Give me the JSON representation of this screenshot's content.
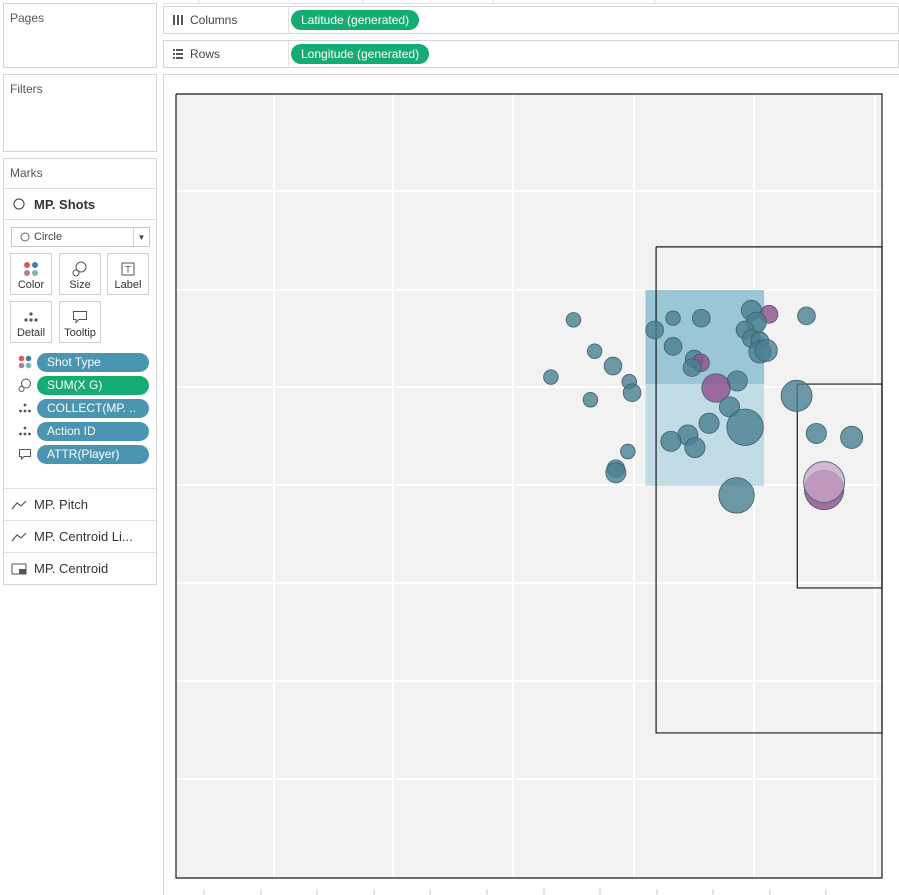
{
  "pages": {
    "title": "Pages"
  },
  "filters": {
    "title": "Filters"
  },
  "marks": {
    "title": "Marks",
    "active_layer": "MP. Shots",
    "mark_type": "Circle",
    "buttons": {
      "color": "Color",
      "size": "Size",
      "label": "Label",
      "detail": "Detail",
      "tooltip": "Tooltip"
    },
    "pills": [
      {
        "icon": "color-icon",
        "text": "Shot Type",
        "color": "#4a95b0"
      },
      {
        "icon": "size-icon",
        "text": "SUM(X G)",
        "color": "#15ac74"
      },
      {
        "icon": "detail-icon",
        "text": "COLLECT(MP. ..",
        "color": "#4a95b0"
      },
      {
        "icon": "detail-icon",
        "text": "Action ID",
        "color": "#4a95b0"
      },
      {
        "icon": "tooltip-icon",
        "text": "ATTR(Player)",
        "color": "#4a95b0"
      }
    ],
    "layers": [
      {
        "icon": "line-icon",
        "text": "MP. Pitch"
      },
      {
        "icon": "line-icon",
        "text": "MP. Centroid Li..."
      },
      {
        "icon": "polygon-icon",
        "text": "MP. Centroid"
      }
    ]
  },
  "shelves": {
    "columns": {
      "label": "Columns",
      "pill": "Latitude (generated)"
    },
    "rows": {
      "label": "Rows",
      "pill": "Longitude (generated)"
    }
  },
  "colors": {
    "shot_teal": "#4a7f91",
    "shot_purple": "#8e4d8c",
    "shot_light_purple": "#c9a6c8",
    "centroid_dark": "#8cbed0",
    "centroid_light": "#b8d8e3",
    "map_background": "#f2f2f2",
    "pill_blue": "#4a95b0",
    "pill_green": "#15ac74"
  },
  "chart_data": {
    "type": "scatter",
    "x_range": [
      0,
      100
    ],
    "y_range": [
      0,
      100
    ],
    "pitch_lines": [
      {
        "name": "pitch-outline",
        "points": [
          [
            0,
            0
          ],
          [
            100,
            0
          ],
          [
            100,
            100
          ],
          [
            0,
            100
          ],
          [
            0,
            0
          ]
        ]
      },
      {
        "name": "penalty-area",
        "points": [
          [
            68,
            19.5
          ],
          [
            100,
            19.5
          ],
          [
            100,
            81.5
          ],
          [
            68,
            81.5
          ],
          [
            68,
            19.5
          ]
        ]
      },
      {
        "name": "goal-area",
        "points": [
          [
            88,
            37
          ],
          [
            100,
            37
          ],
          [
            100,
            63
          ],
          [
            88,
            63
          ],
          [
            88,
            37
          ]
        ]
      }
    ],
    "centroid": [
      {
        "x0": 66.5,
        "x1": 83.3,
        "y0": 25,
        "y1": 37,
        "tone": "dark"
      },
      {
        "x0": 66.5,
        "x1": 83.3,
        "y0": 37,
        "y1": 50,
        "tone": "light"
      }
    ],
    "points": [
      {
        "x": 56.3,
        "y": 28.8,
        "xg": 0.01,
        "type": "teal"
      },
      {
        "x": 70.4,
        "y": 28.6,
        "xg": 0.01,
        "type": "teal"
      },
      {
        "x": 74.4,
        "y": 28.6,
        "xg": 0.02,
        "type": "teal"
      },
      {
        "x": 81.5,
        "y": 27.6,
        "xg": 0.03,
        "type": "teal"
      },
      {
        "x": 89.3,
        "y": 28.3,
        "xg": 0.02,
        "type": "teal"
      },
      {
        "x": 84.0,
        "y": 28.1,
        "xg": 0.02,
        "type": "purple"
      },
      {
        "x": 67.8,
        "y": 30.1,
        "xg": 0.02,
        "type": "teal"
      },
      {
        "x": 82.2,
        "y": 29.1,
        "xg": 0.03,
        "type": "teal"
      },
      {
        "x": 80.6,
        "y": 30.1,
        "xg": 0.02,
        "type": "teal"
      },
      {
        "x": 81.5,
        "y": 31.2,
        "xg": 0.02,
        "type": "teal"
      },
      {
        "x": 82.7,
        "y": 31.5,
        "xg": 0.02,
        "type": "teal"
      },
      {
        "x": 70.4,
        "y": 32.2,
        "xg": 0.02,
        "type": "teal"
      },
      {
        "x": 82.7,
        "y": 32.9,
        "xg": 0.04,
        "type": "teal"
      },
      {
        "x": 83.6,
        "y": 32.7,
        "xg": 0.04,
        "type": "teal"
      },
      {
        "x": 59.3,
        "y": 32.8,
        "xg": 0.01,
        "type": "teal"
      },
      {
        "x": 73.4,
        "y": 33.8,
        "xg": 0.02,
        "type": "teal"
      },
      {
        "x": 74.3,
        "y": 34.3,
        "xg": 0.02,
        "type": "purple"
      },
      {
        "x": 61.9,
        "y": 34.7,
        "xg": 0.02,
        "type": "teal"
      },
      {
        "x": 73.1,
        "y": 34.9,
        "xg": 0.02,
        "type": "teal"
      },
      {
        "x": 53.1,
        "y": 36.1,
        "xg": 0.01,
        "type": "teal"
      },
      {
        "x": 64.2,
        "y": 36.7,
        "xg": 0.01,
        "type": "teal"
      },
      {
        "x": 79.5,
        "y": 36.6,
        "xg": 0.03,
        "type": "teal"
      },
      {
        "x": 76.5,
        "y": 37.5,
        "xg": 0.08,
        "type": "purple"
      },
      {
        "x": 87.9,
        "y": 38.5,
        "xg": 0.1,
        "type": "teal"
      },
      {
        "x": 64.6,
        "y": 38.1,
        "xg": 0.02,
        "type": "teal"
      },
      {
        "x": 58.7,
        "y": 39.0,
        "xg": 0.01,
        "type": "teal"
      },
      {
        "x": 78.4,
        "y": 39.9,
        "xg": 0.03,
        "type": "teal"
      },
      {
        "x": 80.6,
        "y": 42.5,
        "xg": 0.15,
        "type": "teal"
      },
      {
        "x": 75.5,
        "y": 42.0,
        "xg": 0.03,
        "type": "teal"
      },
      {
        "x": 72.5,
        "y": 43.5,
        "xg": 0.03,
        "type": "teal"
      },
      {
        "x": 90.7,
        "y": 43.3,
        "xg": 0.03,
        "type": "teal"
      },
      {
        "x": 95.7,
        "y": 43.8,
        "xg": 0.04,
        "type": "teal"
      },
      {
        "x": 70.1,
        "y": 44.3,
        "xg": 0.03,
        "type": "teal"
      },
      {
        "x": 73.5,
        "y": 45.1,
        "xg": 0.03,
        "type": "teal"
      },
      {
        "x": 64.0,
        "y": 45.6,
        "xg": 0.01,
        "type": "teal"
      },
      {
        "x": 62.3,
        "y": 47.8,
        "xg": 0.02,
        "type": "teal"
      },
      {
        "x": 62.3,
        "y": 48.3,
        "xg": 0.03,
        "type": "teal"
      },
      {
        "x": 91.8,
        "y": 50.5,
        "xg": 0.18,
        "type": "purple"
      },
      {
        "x": 91.8,
        "y": 49.5,
        "xg": 0.2,
        "type": "light-purple"
      },
      {
        "x": 79.4,
        "y": 51.2,
        "xg": 0.14,
        "type": "teal"
      }
    ]
  }
}
